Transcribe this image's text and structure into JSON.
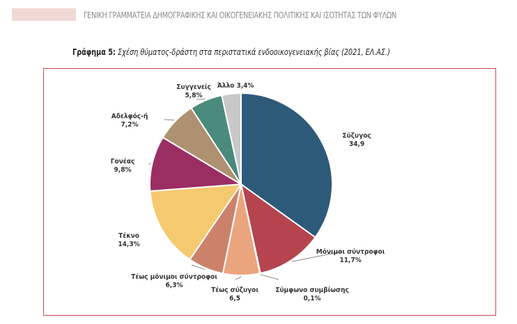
{
  "header": {
    "text": "ΓΕΝΙΚΗ ΓΡΑΜΜΑΤΕΙΑ ΔΗΜΟΓΡΑΦΙΚΗΣ ΚΑΙ ΟΙΚΟΓΕΝΕΙΑΚΗΣ ΠΟΛΙΤΙΚΗΣ ΚΑΙ ΙΣΟΤΗΤΑΣ ΤΩΝ ΦΥΛΩΝ"
  },
  "chart_data": {
    "type": "pie",
    "title_prefix": "Γράφημα 5:",
    "title": "Σχέση θύματος-δράστη στα περιστατικά ενδοοικογενειακής βίας (2021, ΕΛ.ΑΣ.)",
    "slices": [
      {
        "label": "Σύζυγος",
        "value": 34.9,
        "value_label": "34,9",
        "color": "#2e5a7a"
      },
      {
        "label": "Μόνιμοι σύντροφοι",
        "value": 11.7,
        "value_label": "11,7%",
        "color": "#b5444e"
      },
      {
        "label": "Σύμφωνο συμβίωσης",
        "value": 0.1,
        "value_label": "0,1%",
        "color": "#c9a0a0"
      },
      {
        "label": "Τέως σύζυγοι",
        "value": 6.5,
        "value_label": "6,5",
        "color": "#eba57e"
      },
      {
        "label": "Τέως μόνιμοι σύντροφοι",
        "value": 6.3,
        "value_label": "6,3%",
        "color": "#cc826a"
      },
      {
        "label": "Τέκνο",
        "value": 14.3,
        "value_label": "14,3%",
        "color": "#f5c96f"
      },
      {
        "label": "Γονέας",
        "value": 9.8,
        "value_label": "9,8%",
        "color": "#9a2e62"
      },
      {
        "label": "Αδελφός-ή",
        "value": 7.2,
        "value_label": "7,2%",
        "color": "#ae9170"
      },
      {
        "label": "Συγγενείς",
        "value": 5.8,
        "value_label": "5,8%",
        "color": "#4a8a7c"
      },
      {
        "label": "Άλλο",
        "value": 3.4,
        "value_label": "3,4%",
        "color": "#c8c8c8"
      }
    ]
  }
}
